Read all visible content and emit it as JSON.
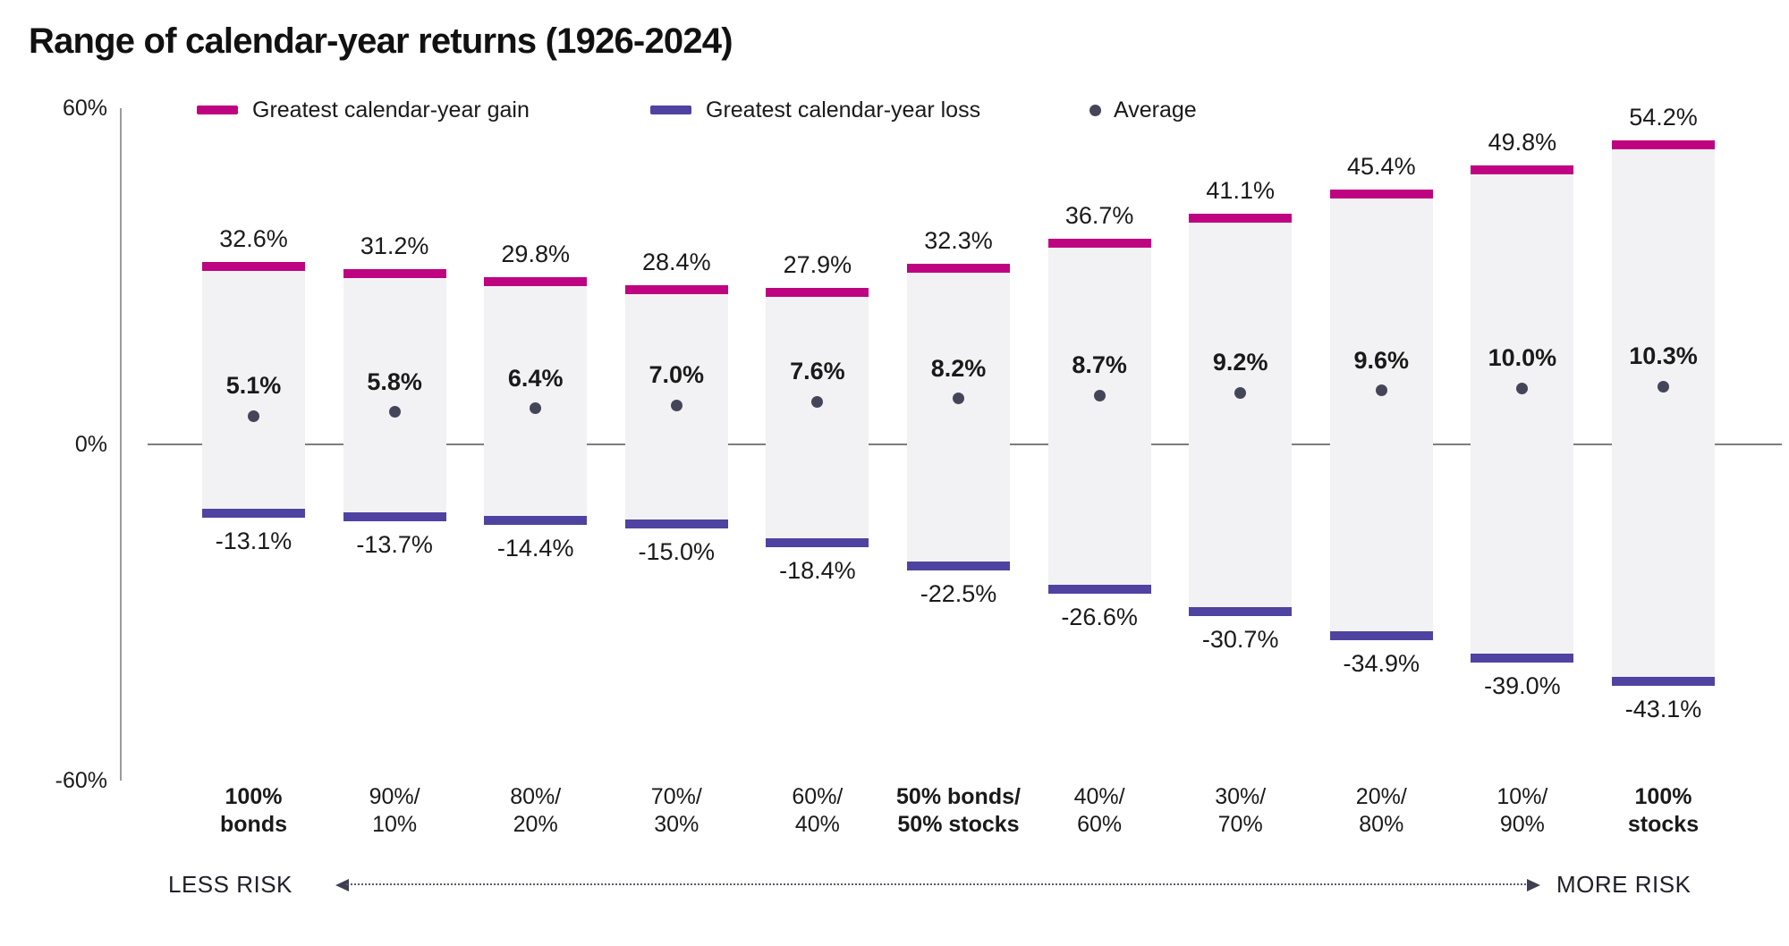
{
  "title": "Range of calendar-year returns (1926-2024)",
  "legend": {
    "gain_label": "Greatest calendar-year gain",
    "loss_label": "Greatest calendar-year loss",
    "average_label": "Average"
  },
  "y_axis": {
    "top_tick": "60%",
    "zero_tick": "0%",
    "bottom_tick": "-60%"
  },
  "risk_scale": {
    "less_label": "LESS RISK",
    "more_label": "MORE RISK"
  },
  "colors": {
    "gain": "#BE0480",
    "loss": "#4F43A1",
    "bar_fill": "#F2F2F4",
    "average_dot": "#45455A",
    "axis": "#9B9B9B",
    "zero_line": "#7D7D7D",
    "arrow": "#5A5A6E"
  },
  "chart_data": {
    "type": "bar",
    "title": "Range of calendar-year returns (1926-2024)",
    "categories": [
      "100% bonds",
      "90%/10%",
      "80%/20%",
      "70%/30%",
      "60%/40%",
      "50% bonds/50% stocks",
      "40%/60%",
      "30%/70%",
      "20%/80%",
      "10%/90%",
      "100% stocks"
    ],
    "category_lines": [
      [
        "100%",
        "bonds"
      ],
      [
        "90%/",
        "10%"
      ],
      [
        "80%/",
        "20%"
      ],
      [
        "70%/",
        "30%"
      ],
      [
        "60%/",
        "40%"
      ],
      [
        "50% bonds/",
        "50% stocks"
      ],
      [
        "40%/",
        "60%"
      ],
      [
        "30%/",
        "70%"
      ],
      [
        "20%/",
        "80%"
      ],
      [
        "10%/",
        "90%"
      ],
      [
        "100%",
        "stocks"
      ]
    ],
    "category_bold": [
      true,
      false,
      false,
      false,
      false,
      true,
      false,
      false,
      false,
      false,
      true
    ],
    "series": [
      {
        "name": "Greatest calendar-year gain",
        "values": [
          32.6,
          31.2,
          29.8,
          28.4,
          27.9,
          32.3,
          36.7,
          41.1,
          45.4,
          49.8,
          54.2
        ]
      },
      {
        "name": "Greatest calendar-year loss",
        "values": [
          -13.1,
          -13.7,
          -14.4,
          -15.0,
          -18.4,
          -22.5,
          -26.6,
          -30.7,
          -34.9,
          -39.0,
          -43.1
        ]
      },
      {
        "name": "Average",
        "values": [
          5.1,
          5.8,
          6.4,
          7.0,
          7.6,
          8.2,
          8.7,
          9.2,
          9.6,
          10.0,
          10.3
        ]
      }
    ],
    "ylim": [
      -60,
      60
    ],
    "yticks": [
      60,
      0,
      -60
    ],
    "grid": false,
    "legend_position": "top",
    "xlabel": "",
    "ylabel": ""
  }
}
